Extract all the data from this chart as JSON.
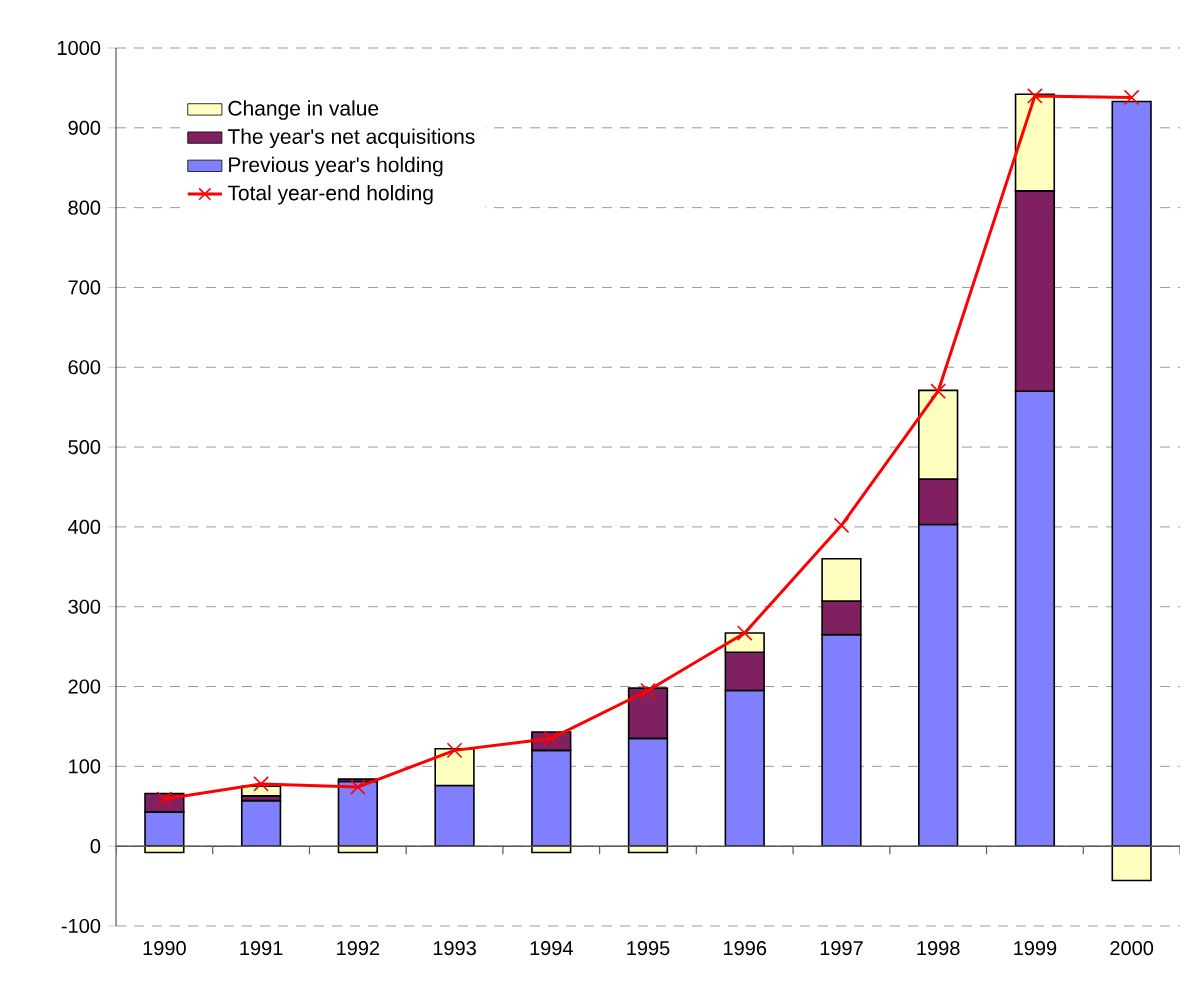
{
  "chart_data": {
    "type": "bar",
    "stacked": true,
    "categories": [
      "1990",
      "1991",
      "1992",
      "1993",
      "1994",
      "1995",
      "1996",
      "1997",
      "1998",
      "1999",
      "2000"
    ],
    "series": [
      {
        "name": "Previous year's holding",
        "color": "#8080ff",
        "values": [
          43,
          57,
          81,
          76,
          120,
          135,
          195,
          265,
          403,
          570,
          933
        ]
      },
      {
        "name": "The year's net acquisitions",
        "color": "#802060",
        "values": [
          23,
          6,
          3,
          0,
          23,
          63,
          48,
          42,
          57,
          251,
          null
        ]
      },
      {
        "name": "Change in value",
        "color": "#ffffc0",
        "values": [
          -8,
          12,
          -8,
          46,
          -8,
          -8,
          24,
          53,
          111,
          121,
          -43
        ]
      },
      {
        "name": "Total year-end holding",
        "type": "line",
        "color": "#ff0000",
        "marker": "cross",
        "values": [
          59,
          78,
          74,
          120,
          135,
          195,
          267,
          402,
          570,
          940,
          938
        ]
      }
    ],
    "ylim": [
      -100,
      1000
    ],
    "yticks": [
      -100,
      0,
      100,
      200,
      300,
      400,
      500,
      600,
      700,
      800,
      900,
      1000
    ],
    "grid": "y",
    "legend": "top left"
  }
}
